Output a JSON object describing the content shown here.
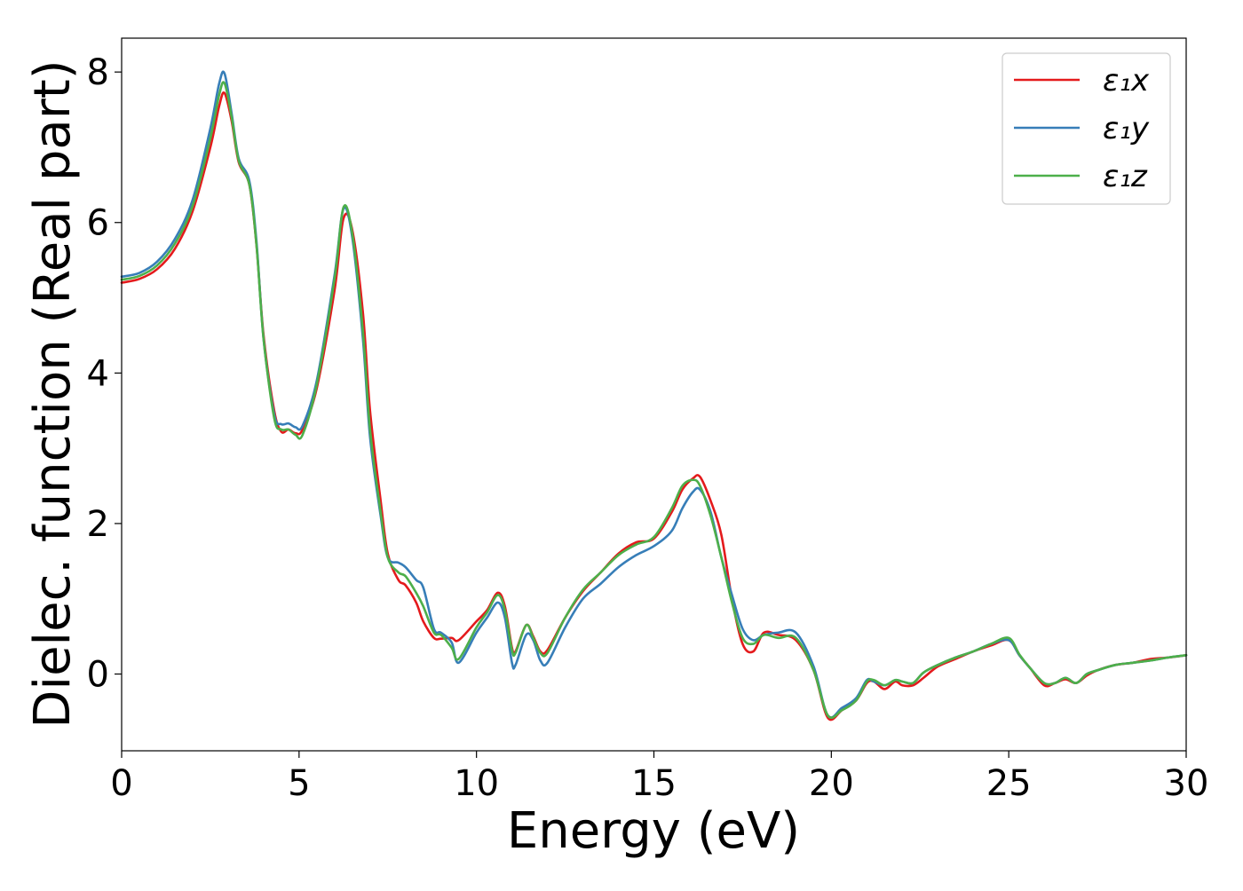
{
  "chart_data": {
    "type": "line",
    "title": "",
    "xlabel": "Energy (eV)",
    "ylabel": "Dielec. function (Real part)",
    "xlim": [
      0,
      30
    ],
    "ylim": [
      -1.02,
      8.45
    ],
    "xticks": [
      0,
      5,
      10,
      15,
      20,
      25,
      30
    ],
    "yticks": [
      0,
      2,
      4,
      6,
      8
    ],
    "grid": false,
    "legend_position": "top-right",
    "series": [
      {
        "name": "ε₁x",
        "color": "#e41a1c",
        "x": [
          0,
          0.5,
          1.0,
          1.5,
          2.0,
          2.5,
          2.75,
          2.9,
          3.1,
          3.3,
          3.6,
          3.8,
          4.0,
          4.3,
          4.5,
          4.7,
          4.9,
          5.1,
          5.5,
          6.0,
          6.25,
          6.5,
          6.8,
          7.0,
          7.3,
          7.5,
          7.8,
          8.0,
          8.3,
          8.5,
          8.8,
          9.0,
          9.3,
          9.5,
          10.0,
          10.3,
          10.6,
          10.8,
          11.0,
          11.1,
          11.4,
          11.6,
          11.8,
          12.0,
          12.5,
          13.0,
          13.5,
          14.0,
          14.5,
          15.0,
          15.5,
          15.8,
          16.1,
          16.3,
          16.6,
          16.9,
          17.2,
          17.5,
          17.8,
          18.1,
          18.5,
          19.0,
          19.5,
          19.9,
          20.3,
          20.7,
          21.0,
          21.2,
          21.5,
          21.8,
          22.0,
          22.3,
          22.6,
          23.0,
          23.5,
          24.0,
          24.5,
          25.0,
          25.3,
          25.6,
          26.0,
          26.3,
          26.6,
          26.9,
          27.2,
          27.5,
          28.0,
          28.5,
          29.0,
          29.5,
          30.0
        ],
        "values": [
          5.2,
          5.25,
          5.38,
          5.65,
          6.15,
          7.0,
          7.55,
          7.72,
          7.35,
          6.8,
          6.5,
          5.7,
          4.5,
          3.5,
          3.22,
          3.25,
          3.2,
          3.25,
          3.8,
          5.1,
          6.05,
          5.9,
          4.8,
          3.5,
          2.3,
          1.6,
          1.25,
          1.18,
          0.95,
          0.7,
          0.48,
          0.47,
          0.48,
          0.45,
          0.7,
          0.85,
          1.08,
          0.9,
          0.35,
          0.3,
          0.65,
          0.5,
          0.3,
          0.32,
          0.75,
          1.1,
          1.35,
          1.6,
          1.75,
          1.8,
          2.15,
          2.45,
          2.6,
          2.62,
          2.3,
          1.85,
          1.0,
          0.4,
          0.3,
          0.55,
          0.52,
          0.45,
          0.05,
          -0.58,
          -0.48,
          -0.35,
          -0.12,
          -0.1,
          -0.2,
          -0.1,
          -0.15,
          -0.15,
          -0.05,
          0.1,
          0.2,
          0.3,
          0.38,
          0.45,
          0.25,
          0.08,
          -0.15,
          -0.12,
          -0.07,
          -0.12,
          -0.02,
          0.05,
          0.12,
          0.15,
          0.2,
          0.22,
          0.25
        ]
      },
      {
        "name": "ε₁y",
        "color": "#377eb8",
        "x": [
          0,
          0.5,
          1.0,
          1.5,
          2.0,
          2.5,
          2.75,
          2.9,
          3.1,
          3.3,
          3.6,
          3.8,
          4.0,
          4.3,
          4.5,
          4.7,
          4.9,
          5.1,
          5.5,
          6.0,
          6.25,
          6.5,
          6.8,
          7.0,
          7.3,
          7.5,
          7.8,
          8.0,
          8.3,
          8.5,
          8.8,
          9.0,
          9.3,
          9.5,
          10.0,
          10.3,
          10.6,
          10.8,
          11.0,
          11.1,
          11.4,
          11.6,
          11.8,
          12.0,
          12.5,
          13.0,
          13.5,
          14.0,
          14.5,
          15.0,
          15.5,
          15.8,
          16.1,
          16.3,
          16.6,
          16.9,
          17.2,
          17.5,
          17.8,
          18.1,
          18.5,
          19.0,
          19.5,
          19.9,
          20.3,
          20.7,
          21.0,
          21.2,
          21.5,
          21.8,
          22.0,
          22.3,
          22.6,
          23.0,
          23.5,
          24.0,
          24.5,
          25.0,
          25.3,
          25.6,
          26.0,
          26.3,
          26.6,
          26.9,
          27.2,
          27.5,
          28.0,
          28.5,
          29.0,
          29.5,
          30.0
        ],
        "values": [
          5.28,
          5.33,
          5.48,
          5.78,
          6.3,
          7.25,
          7.85,
          7.98,
          7.45,
          6.85,
          6.55,
          5.75,
          4.45,
          3.45,
          3.32,
          3.33,
          3.28,
          3.3,
          3.9,
          5.3,
          6.18,
          5.8,
          4.45,
          3.15,
          2.1,
          1.55,
          1.48,
          1.42,
          1.25,
          1.15,
          0.6,
          0.55,
          0.42,
          0.15,
          0.55,
          0.75,
          0.95,
          0.75,
          0.15,
          0.12,
          0.52,
          0.45,
          0.18,
          0.15,
          0.62,
          1.0,
          1.2,
          1.42,
          1.58,
          1.7,
          1.9,
          2.2,
          2.42,
          2.45,
          2.15,
          1.55,
          1.05,
          0.6,
          0.45,
          0.52,
          0.55,
          0.55,
          0.1,
          -0.55,
          -0.45,
          -0.32,
          -0.08,
          -0.1,
          -0.15,
          -0.08,
          -0.1,
          -0.12,
          0.02,
          0.12,
          0.22,
          0.3,
          0.4,
          0.45,
          0.25,
          0.08,
          -0.12,
          -0.12,
          -0.05,
          -0.12,
          0.0,
          0.05,
          0.12,
          0.15,
          0.18,
          0.22,
          0.25
        ]
      },
      {
        "name": "ε₁z",
        "color": "#4daf4a",
        "x": [
          0,
          0.5,
          1.0,
          1.5,
          2.0,
          2.5,
          2.75,
          2.9,
          3.1,
          3.3,
          3.6,
          3.8,
          4.0,
          4.3,
          4.5,
          4.7,
          4.9,
          5.1,
          5.5,
          6.0,
          6.25,
          6.5,
          6.8,
          7.0,
          7.3,
          7.5,
          7.8,
          8.0,
          8.3,
          8.5,
          8.8,
          9.0,
          9.3,
          9.5,
          10.0,
          10.3,
          10.6,
          10.8,
          11.0,
          11.1,
          11.4,
          11.6,
          11.8,
          12.0,
          12.5,
          13.0,
          13.5,
          14.0,
          14.5,
          15.0,
          15.5,
          15.8,
          16.1,
          16.3,
          16.6,
          16.9,
          17.2,
          17.5,
          17.8,
          18.1,
          18.5,
          19.0,
          19.5,
          19.9,
          20.3,
          20.7,
          21.0,
          21.2,
          21.5,
          21.8,
          22.0,
          22.3,
          22.6,
          23.0,
          23.5,
          24.0,
          24.5,
          25.0,
          25.3,
          25.6,
          26.0,
          26.3,
          26.6,
          26.9,
          27.2,
          27.5,
          28.0,
          28.5,
          29.0,
          29.5,
          30.0
        ],
        "values": [
          5.24,
          5.29,
          5.43,
          5.72,
          6.22,
          7.12,
          7.7,
          7.85,
          7.4,
          6.82,
          6.5,
          5.7,
          4.45,
          3.4,
          3.25,
          3.25,
          3.18,
          3.18,
          3.85,
          5.25,
          6.2,
          5.85,
          4.55,
          3.25,
          2.15,
          1.55,
          1.35,
          1.3,
          1.08,
          0.9,
          0.55,
          0.52,
          0.35,
          0.2,
          0.62,
          0.82,
          1.05,
          0.85,
          0.32,
          0.28,
          0.65,
          0.48,
          0.28,
          0.28,
          0.75,
          1.12,
          1.35,
          1.58,
          1.72,
          1.82,
          2.2,
          2.5,
          2.58,
          2.5,
          2.1,
          1.55,
          0.95,
          0.48,
          0.4,
          0.52,
          0.48,
          0.48,
          0.05,
          -0.55,
          -0.48,
          -0.35,
          -0.1,
          -0.08,
          -0.15,
          -0.08,
          -0.1,
          -0.12,
          0.02,
          0.12,
          0.22,
          0.3,
          0.4,
          0.48,
          0.26,
          0.08,
          -0.12,
          -0.12,
          -0.05,
          -0.12,
          0.0,
          0.05,
          0.12,
          0.15,
          0.18,
          0.22,
          0.25
        ]
      }
    ]
  }
}
